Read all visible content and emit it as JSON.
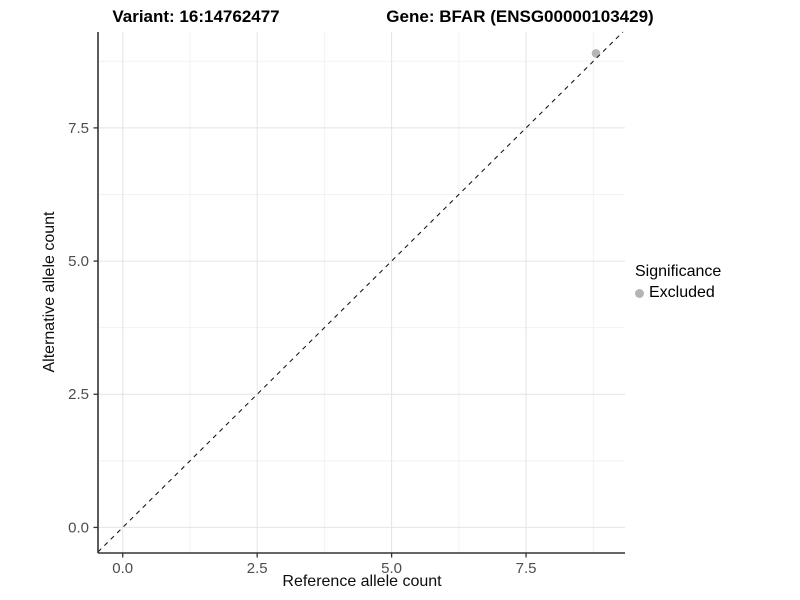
{
  "header": {
    "variant_title": "Variant: 16:14762477",
    "gene_title": "Gene: BFAR (ENSG00000103429)"
  },
  "chart_data": {
    "type": "scatter",
    "xlabel": "Reference allele count",
    "ylabel": "Alternative allele count",
    "xlim": [
      -0.46,
      9.34
    ],
    "ylim": [
      -0.48,
      9.3
    ],
    "xticks": {
      "values": [
        0,
        2.5,
        5,
        7.5
      ],
      "labels": [
        "0.0",
        "2.5",
        "5.0",
        "7.5"
      ]
    },
    "yticks": {
      "values": [
        0,
        2.5,
        5,
        7.5
      ],
      "labels": [
        "0.0",
        "2.5",
        "5.0",
        "7.5"
      ]
    },
    "minor_ticks": [
      1.25,
      3.75,
      6.25,
      8.75
    ],
    "grid": {
      "show": true,
      "major_color": "#e4e4e4",
      "minor_color": "#f2f2f2"
    },
    "identity_line": {
      "slope": 1,
      "intercept": 0,
      "style": "dashed",
      "color": "#1a1a1a"
    },
    "series": [
      {
        "name": "Excluded",
        "color": "#b5b5b5",
        "points": [
          {
            "x": 8.8,
            "y": 8.9
          }
        ]
      }
    ],
    "legend": {
      "title": "Significance",
      "position": "right",
      "items": [
        {
          "label": "Excluded",
          "color": "#b5b5b5"
        }
      ]
    },
    "axis_color": "#333333",
    "tick_label_color": "#4d4d4d"
  }
}
